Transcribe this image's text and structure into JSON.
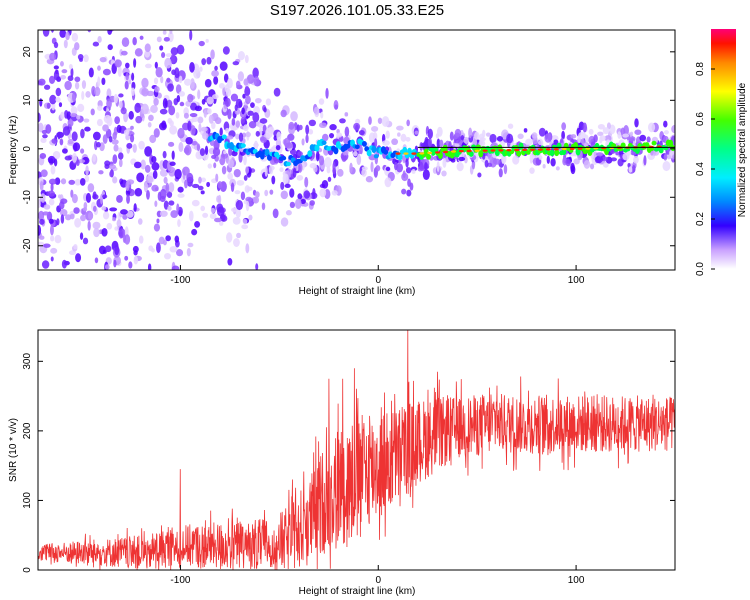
{
  "chart_data": [
    {
      "type": "heatmap",
      "title": "S197.2026.101.05.33.E25",
      "xlabel": "Height of straight line (km)",
      "ylabel": "Frequency (Hz)",
      "xlim": [
        -172,
        150
      ],
      "ylim": [
        -25,
        24.5
      ],
      "x_ticks": [
        -100,
        0,
        100
      ],
      "y_ticks": [
        -20,
        -10,
        0,
        10,
        20
      ],
      "colorbar": {
        "label": "Normalized spectral amplitude",
        "range": [
          0,
          0.96
        ],
        "ticks": [
          "0.0",
          "0.2",
          "0.4",
          "0.6",
          "0.8"
        ],
        "colormap": [
          "#ffffff",
          "#b27cff",
          "#3300ff",
          "#0099ff",
          "#00ffff",
          "#00ff55",
          "#66ff00",
          "#ffff00",
          "#ff9900",
          "#ff0000",
          "#ff0088"
        ]
      },
      "trace": {
        "description_points": [
          [
            -172,
            0
          ],
          [
            -80,
            2
          ],
          [
            -60,
            -1
          ],
          [
            -40,
            -3
          ],
          [
            -30,
            1
          ],
          [
            -20,
            0
          ],
          [
            -10,
            1
          ],
          [
            0,
            -1
          ],
          [
            20,
            -1
          ],
          [
            40,
            -0.5
          ],
          [
            100,
            0
          ],
          [
            150,
            0.5
          ]
        ]
      }
    },
    {
      "type": "line",
      "title": "",
      "xlabel": "Height of straight line (km)",
      "ylabel": "SNR (10 * v/v)",
      "xlim": [
        -172,
        150
      ],
      "ylim": [
        0,
        345
      ],
      "x_ticks": [
        -100,
        0,
        100
      ],
      "y_ticks": [
        0,
        100,
        200,
        300
      ],
      "color": "#ee3333",
      "series": [
        {
          "name": "SNR",
          "envelope_points": [
            [
              -172,
              25
            ],
            [
              -120,
              25
            ],
            [
              -100,
              35
            ],
            [
              -60,
              35
            ],
            [
              -45,
              45
            ],
            [
              -35,
              70
            ],
            [
              -25,
              110
            ],
            [
              -15,
              130
            ],
            [
              -5,
              145
            ],
            [
              5,
              155
            ],
            [
              15,
              175
            ],
            [
              25,
              190
            ],
            [
              40,
              205
            ],
            [
              60,
              210
            ],
            [
              100,
              210
            ],
            [
              150,
              210
            ]
          ],
          "noise_amplitude": [
            [
              -172,
              12
            ],
            [
              -100,
              30
            ],
            [
              -50,
              40
            ],
            [
              -20,
              90
            ],
            [
              0,
              80
            ],
            [
              40,
              45
            ],
            [
              150,
              40
            ]
          ],
          "spikes": [
            [
              -100,
              145
            ],
            [
              -25,
              275
            ],
            [
              -18,
              275
            ],
            [
              -12,
              290
            ],
            [
              15,
              345
            ],
            [
              30,
              285
            ],
            [
              60,
              265
            ]
          ]
        }
      ]
    }
  ]
}
